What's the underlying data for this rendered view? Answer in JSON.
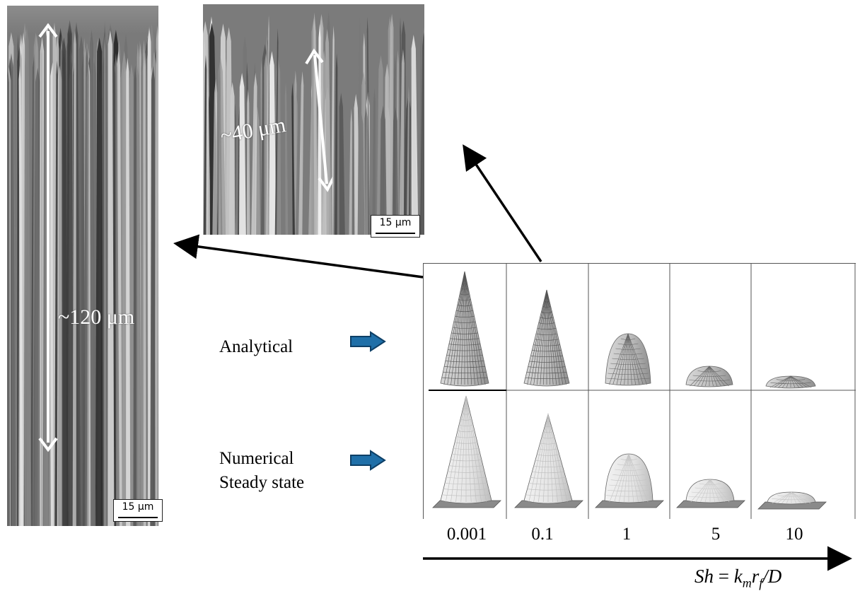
{
  "left_image": {
    "measurement": "~120 μm",
    "scale_label": "15 μm"
  },
  "top_image": {
    "measurement": "~40 μm",
    "scale_label": "15 μm"
  },
  "rows": {
    "analytical": "Analytical",
    "numerical_line1": "Numerical",
    "numerical_line2": "Steady state"
  },
  "sh_values": [
    "0.001",
    "0.1",
    "1",
    "5",
    "10"
  ],
  "formula": {
    "sh": "Sh",
    "eq": " =  ",
    "k": "k",
    "m": "m",
    "r": "r",
    "f": "f",
    "tail": "/D"
  },
  "colors": {
    "arrow_blue": "#1f6fa8",
    "arrow_blue_dark": "#0d3f66",
    "grid": "#555555"
  }
}
